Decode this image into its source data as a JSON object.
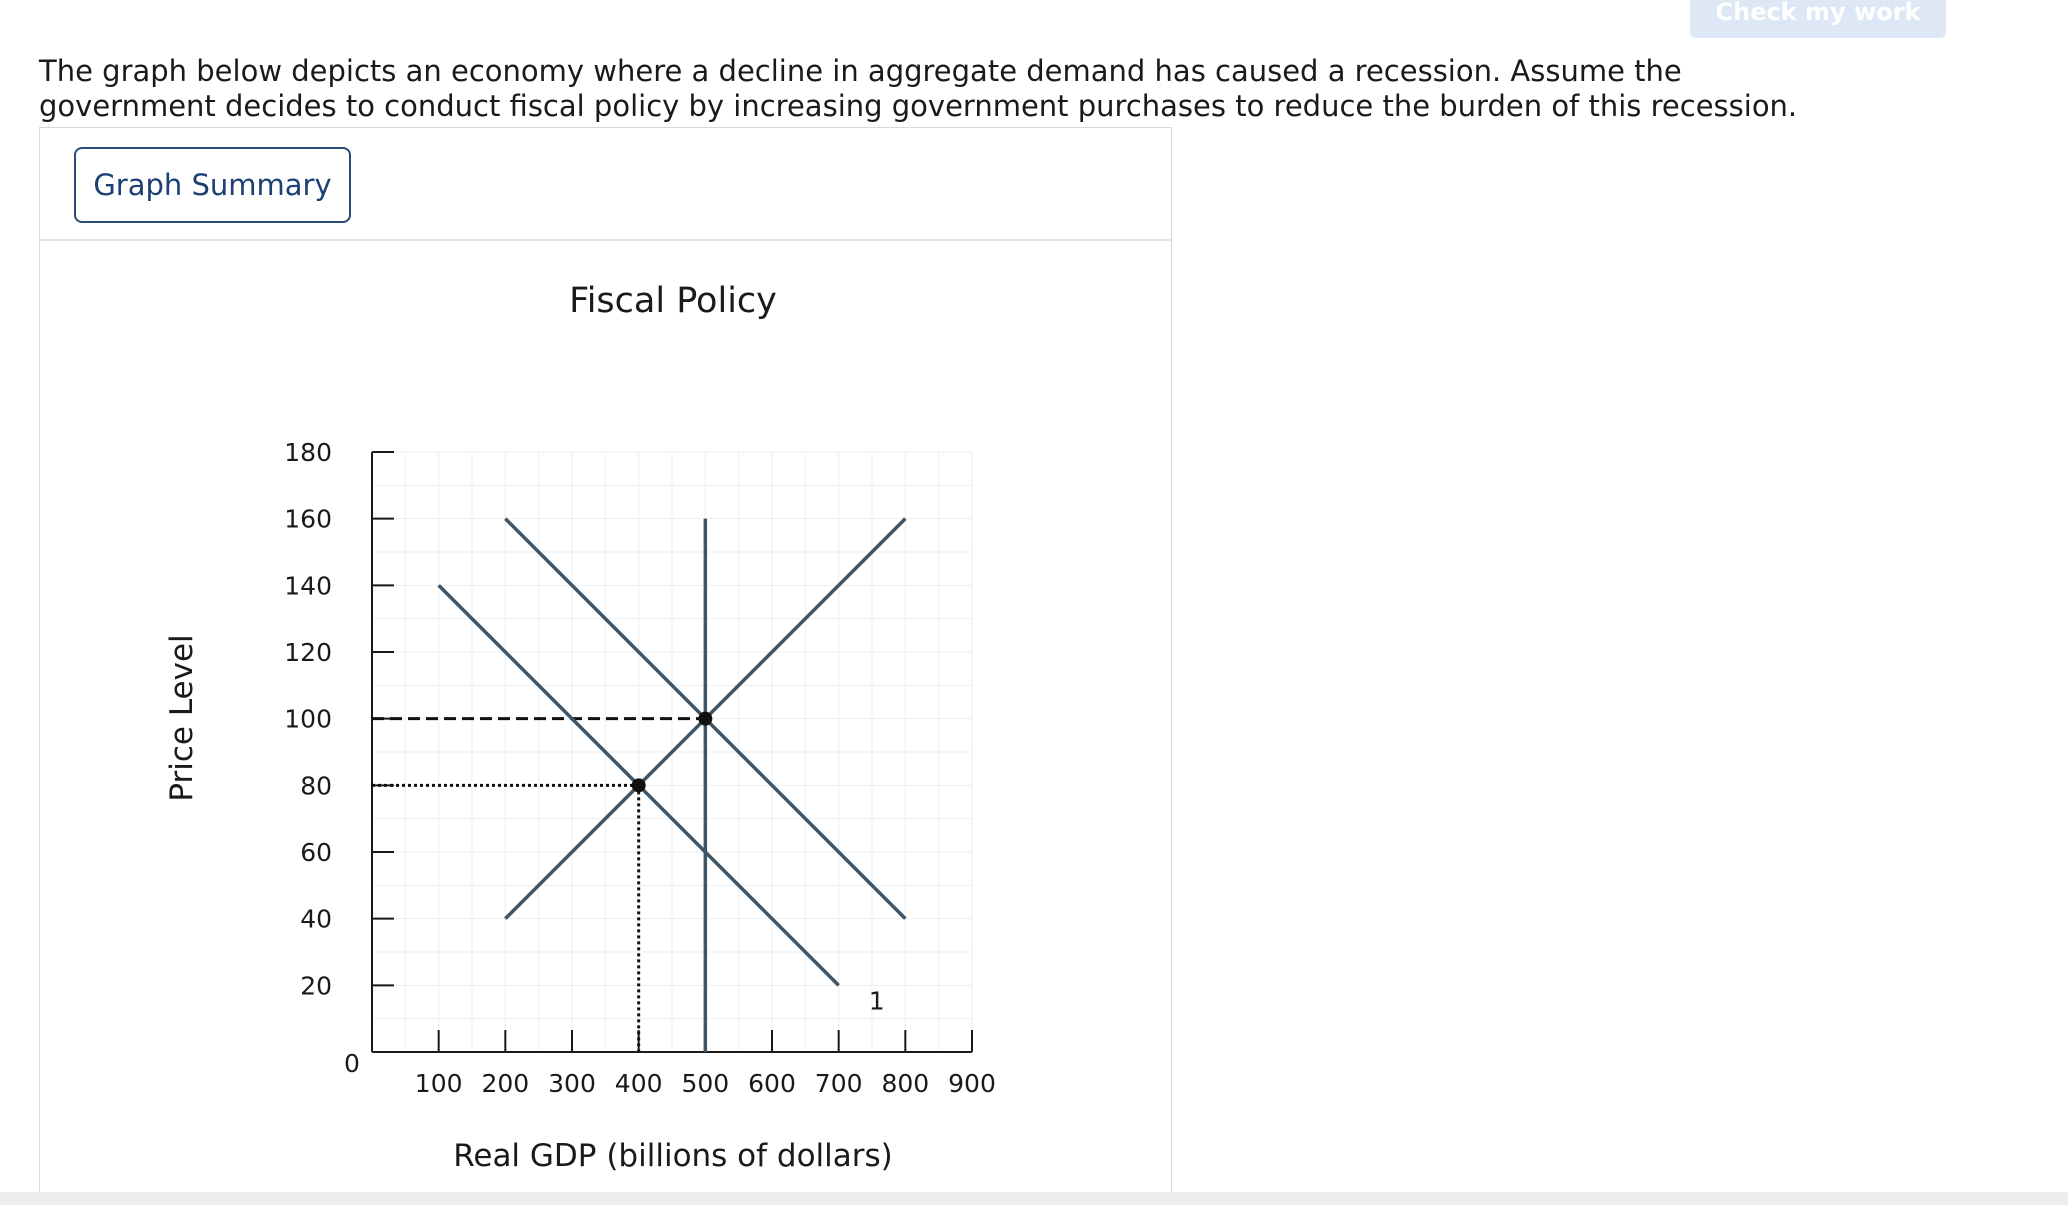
{
  "toolbar": {
    "check_label": "Check my work"
  },
  "question": {
    "text": "The graph below depicts an economy where a decline in aggregate demand has caused a recession. Assume the government decides to conduct fiscal policy by increasing government purchases to reduce the burden of this recession."
  },
  "panel": {
    "summary_button_label": "Graph Summary"
  },
  "colors": {
    "curve": "#3d5566",
    "axis": "#1a1a1a",
    "grid": "#eeeeee",
    "check_button_bg": "#dde7f5",
    "summary_border": "#2b4a78"
  },
  "chart_data": {
    "type": "line",
    "title": "Fiscal Policy",
    "xlabel": "Real GDP (billions of dollars)",
    "ylabel": "Price Level",
    "origin_label": "0",
    "xlim": [
      0,
      900
    ],
    "ylim": [
      0,
      180
    ],
    "x_ticks": [
      100,
      200,
      300,
      400,
      500,
      600,
      700,
      800,
      900
    ],
    "y_ticks": [
      20,
      40,
      60,
      80,
      100,
      120,
      140,
      160,
      180
    ],
    "grid": true,
    "series": [
      {
        "points": [
          [
            100,
            140
          ],
          [
            700,
            20
          ]
        ],
        "label": "1"
      },
      {
        "points": [
          [
            200,
            160
          ],
          [
            800,
            40
          ]
        ]
      },
      {
        "points": [
          [
            200,
            40
          ],
          [
            800,
            160
          ]
        ]
      },
      {
        "points": [
          [
            500,
            0
          ],
          [
            500,
            160
          ]
        ]
      }
    ],
    "markers": [
      {
        "x": 500,
        "y": 100
      },
      {
        "x": 400,
        "y": 80
      }
    ],
    "reference_lines": [
      {
        "style": "dashed",
        "from": [
          0,
          100
        ],
        "to": [
          500,
          100
        ]
      },
      {
        "style": "dotted",
        "from": [
          0,
          80
        ],
        "to": [
          400,
          80
        ]
      },
      {
        "style": "dotted",
        "from": [
          400,
          80
        ],
        "to": [
          400,
          0
        ]
      }
    ]
  }
}
